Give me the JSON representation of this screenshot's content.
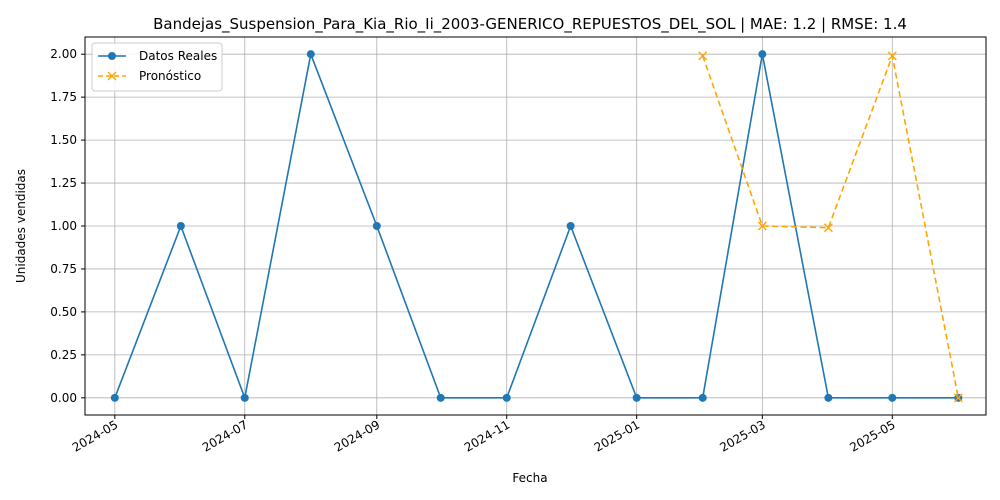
{
  "chart_data": {
    "type": "line",
    "title": "Bandejas_Suspension_Para_Kia_Rio_Ii_2003-GENERICO_REPUESTOS_DEL_SOL | MAE: 1.2 | RMSE: 1.4",
    "xlabel": "Fecha",
    "ylabel": "Unidades vendidas",
    "ylim": [
      -0.1,
      2.1
    ],
    "xlim": [
      "2024-04-17",
      "2025-06-14"
    ],
    "yticks": [
      0.0,
      0.25,
      0.5,
      0.75,
      1.0,
      1.25,
      1.5,
      1.75,
      2.0
    ],
    "ytick_labels": [
      "0.00",
      "0.25",
      "0.50",
      "0.75",
      "1.00",
      "1.25",
      "1.50",
      "1.75",
      "2.00"
    ],
    "xticks": [
      "2024-05-01",
      "2024-07-01",
      "2024-09-01",
      "2024-11-01",
      "2025-01-01",
      "2025-03-01",
      "2025-05-01"
    ],
    "xtick_labels": [
      "2024-05",
      "2024-07",
      "2024-09",
      "2024-11",
      "2025-01",
      "2025-03",
      "2025-05"
    ],
    "grid": true,
    "legend_position": "top-left",
    "series": [
      {
        "name": "Datos Reales",
        "color": "#1f77b4",
        "style": "solid",
        "marker": "circle",
        "x": [
          "2024-05-01",
          "2024-06-01",
          "2024-07-01",
          "2024-08-01",
          "2024-09-01",
          "2024-10-01",
          "2024-11-01",
          "2024-12-01",
          "2025-01-01",
          "2025-02-01",
          "2025-03-01",
          "2025-04-01",
          "2025-05-01",
          "2025-06-01"
        ],
        "y": [
          0,
          1,
          0,
          2,
          1,
          0,
          0,
          1,
          0,
          0,
          2,
          0,
          0,
          0
        ]
      },
      {
        "name": "Pronóstico",
        "color": "#ffa500",
        "style": "dashed",
        "marker": "x",
        "x": [
          "2025-02-01",
          "2025-03-01",
          "2025-04-01",
          "2025-05-01",
          "2025-06-01"
        ],
        "y": [
          1.99,
          1.0,
          0.99,
          1.99,
          0.0
        ]
      }
    ]
  }
}
